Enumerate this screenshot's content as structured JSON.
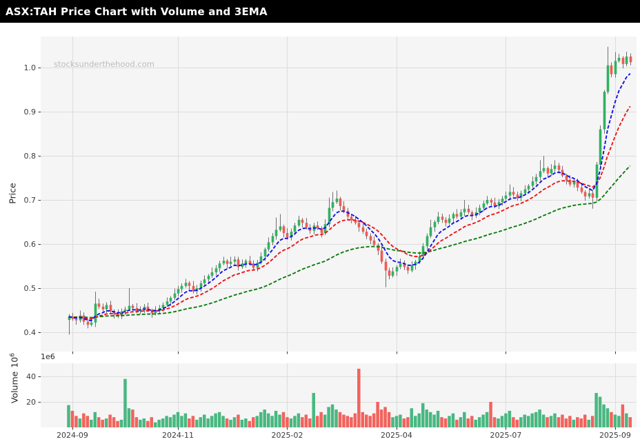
{
  "title_bar": {
    "title": "ASX:TAH Price Chart with Volume and 3EMA"
  },
  "watermark": "stocksunderthehood.com",
  "price_axis": {
    "label": "Price",
    "tick_values": [
      0.4,
      0.5,
      0.6,
      0.7,
      0.8,
      0.9,
      1.0
    ],
    "tick_labels": [
      "0.4",
      "0.5",
      "0.6",
      "0.7",
      "0.8",
      "0.9",
      "1.0"
    ]
  },
  "volume_axis": {
    "label": "Volume",
    "scale_base": "10",
    "scale_exp": "6",
    "offset_label": "1e6",
    "tick_values": [
      20,
      40
    ],
    "tick_labels": [
      "20",
      "40"
    ]
  },
  "x_axis": {
    "tick_labels": [
      "2024-09",
      "2024-11",
      "2025-02",
      "2025-04",
      "2025-07",
      "2025-09"
    ],
    "tick_bar_indices": [
      1,
      29,
      58,
      87,
      116,
      145
    ]
  },
  "colors": {
    "candle_up": "#2fb25f",
    "candle_down": "#f05a52",
    "volume_up": "#48b880",
    "volume_down": "#f2635c",
    "wick": "#6f6f6f",
    "ema_fast": "#0f0fe8",
    "ema_mid": "#ed1515",
    "ema_slow": "#0a7d0a",
    "grid": "#dcdcdc",
    "panel_bg": "#f5f5f6",
    "tick_mark": "#333333"
  },
  "chart_data": {
    "type": "candlestick",
    "title": "ASX:TAH Price Chart with Volume and 3EMA",
    "price_ylim": [
      0.356,
      1.067
    ],
    "volume_ylim_millions": [
      0,
      50.3
    ],
    "volume_unit": "1e6",
    "ema_periods": [
      7,
      16,
      55
    ],
    "ema_styles": [
      "dashed",
      "dashed",
      "dashed"
    ],
    "ohlcv_millions": [
      [
        0.428,
        0.441,
        0.395,
        0.435,
        17.5
      ],
      [
        0.435,
        0.444,
        0.426,
        0.43,
        13
      ],
      [
        0.43,
        0.434,
        0.417,
        0.427,
        9
      ],
      [
        0.427,
        0.449,
        0.422,
        0.438,
        7
      ],
      [
        0.438,
        0.445,
        0.417,
        0.424,
        11
      ],
      [
        0.424,
        0.43,
        0.409,
        0.417,
        9
      ],
      [
        0.417,
        0.431,
        0.413,
        0.422,
        6
      ],
      [
        0.422,
        0.492,
        0.412,
        0.465,
        12
      ],
      [
        0.465,
        0.476,
        0.453,
        0.458,
        8
      ],
      [
        0.458,
        0.465,
        0.445,
        0.452,
        6
      ],
      [
        0.452,
        0.468,
        0.444,
        0.462,
        7
      ],
      [
        0.462,
        0.471,
        0.444,
        0.448,
        10
      ],
      [
        0.448,
        0.452,
        0.431,
        0.441,
        8
      ],
      [
        0.441,
        0.452,
        0.432,
        0.437,
        5
      ],
      [
        0.437,
        0.454,
        0.43,
        0.447,
        6
      ],
      [
        0.447,
        0.458,
        0.439,
        0.452,
        38
      ],
      [
        0.452,
        0.5,
        0.448,
        0.46,
        15
      ],
      [
        0.46,
        0.464,
        0.445,
        0.455,
        14
      ],
      [
        0.455,
        0.466,
        0.443,
        0.448,
        8
      ],
      [
        0.448,
        0.459,
        0.441,
        0.452,
        6
      ],
      [
        0.452,
        0.464,
        0.444,
        0.458,
        7
      ],
      [
        0.458,
        0.467,
        0.446,
        0.45,
        5
      ],
      [
        0.45,
        0.454,
        0.433,
        0.443,
        8
      ],
      [
        0.443,
        0.459,
        0.438,
        0.448,
        4
      ],
      [
        0.448,
        0.462,
        0.441,
        0.455,
        6
      ],
      [
        0.455,
        0.468,
        0.447,
        0.462,
        7
      ],
      [
        0.462,
        0.479,
        0.458,
        0.47,
        9
      ],
      [
        0.47,
        0.482,
        0.46,
        0.478,
        8
      ],
      [
        0.478,
        0.499,
        0.473,
        0.488,
        10
      ],
      [
        0.488,
        0.505,
        0.481,
        0.498,
        12
      ],
      [
        0.498,
        0.511,
        0.49,
        0.505,
        9
      ],
      [
        0.505,
        0.521,
        0.501,
        0.512,
        11
      ],
      [
        0.512,
        0.516,
        0.495,
        0.505,
        7
      ],
      [
        0.505,
        0.516,
        0.488,
        0.493,
        9
      ],
      [
        0.493,
        0.507,
        0.486,
        0.5,
        6
      ],
      [
        0.5,
        0.517,
        0.492,
        0.511,
        8
      ],
      [
        0.511,
        0.529,
        0.507,
        0.52,
        10
      ],
      [
        0.52,
        0.532,
        0.51,
        0.528,
        7
      ],
      [
        0.528,
        0.547,
        0.523,
        0.536,
        9
      ],
      [
        0.536,
        0.552,
        0.529,
        0.545,
        11
      ],
      [
        0.545,
        0.562,
        0.537,
        0.556,
        12
      ],
      [
        0.556,
        0.571,
        0.552,
        0.562,
        9
      ],
      [
        0.562,
        0.566,
        0.545,
        0.555,
        7
      ],
      [
        0.555,
        0.571,
        0.55,
        0.56,
        6
      ],
      [
        0.56,
        0.572,
        0.553,
        0.565,
        8
      ],
      [
        0.565,
        0.571,
        0.54,
        0.548,
        10
      ],
      [
        0.548,
        0.565,
        0.544,
        0.556,
        6
      ],
      [
        0.556,
        0.566,
        0.546,
        0.562,
        7
      ],
      [
        0.562,
        0.573,
        0.551,
        0.556,
        5
      ],
      [
        0.556,
        0.563,
        0.539,
        0.546,
        8
      ],
      [
        0.546,
        0.564,
        0.538,
        0.558,
        9
      ],
      [
        0.558,
        0.581,
        0.554,
        0.572,
        12
      ],
      [
        0.572,
        0.592,
        0.562,
        0.588,
        14
      ],
      [
        0.588,
        0.615,
        0.583,
        0.604,
        11
      ],
      [
        0.604,
        0.625,
        0.597,
        0.618,
        9
      ],
      [
        0.618,
        0.66,
        0.61,
        0.632,
        13
      ],
      [
        0.632,
        0.668,
        0.628,
        0.64,
        10
      ],
      [
        0.64,
        0.644,
        0.615,
        0.625,
        12
      ],
      [
        0.625,
        0.636,
        0.61,
        0.615,
        8
      ],
      [
        0.615,
        0.635,
        0.608,
        0.628,
        7
      ],
      [
        0.628,
        0.648,
        0.62,
        0.642,
        9
      ],
      [
        0.642,
        0.664,
        0.638,
        0.655,
        11
      ],
      [
        0.655,
        0.659,
        0.638,
        0.648,
        8
      ],
      [
        0.648,
        0.659,
        0.633,
        0.638,
        10
      ],
      [
        0.638,
        0.645,
        0.623,
        0.63,
        7
      ],
      [
        0.63,
        0.648,
        0.622,
        0.642,
        27
      ],
      [
        0.642,
        0.651,
        0.632,
        0.636,
        9
      ],
      [
        0.636,
        0.64,
        0.615,
        0.625,
        12
      ],
      [
        0.625,
        0.656,
        0.62,
        0.645,
        10
      ],
      [
        0.645,
        0.705,
        0.638,
        0.682,
        16
      ],
      [
        0.682,
        0.718,
        0.674,
        0.695,
        18
      ],
      [
        0.695,
        0.721,
        0.691,
        0.703,
        14
      ],
      [
        0.703,
        0.707,
        0.676,
        0.686,
        12
      ],
      [
        0.686,
        0.697,
        0.67,
        0.675,
        10
      ],
      [
        0.675,
        0.682,
        0.655,
        0.662,
        9
      ],
      [
        0.662,
        0.668,
        0.647,
        0.655,
        8
      ],
      [
        0.655,
        0.664,
        0.644,
        0.648,
        11
      ],
      [
        0.648,
        0.652,
        0.628,
        0.638,
        46
      ],
      [
        0.638,
        0.649,
        0.623,
        0.628,
        12
      ],
      [
        0.628,
        0.635,
        0.611,
        0.618,
        10
      ],
      [
        0.618,
        0.624,
        0.6,
        0.608,
        9
      ],
      [
        0.608,
        0.617,
        0.594,
        0.598,
        11
      ],
      [
        0.598,
        0.602,
        0.575,
        0.585,
        20
      ],
      [
        0.585,
        0.596,
        0.555,
        0.56,
        14
      ],
      [
        0.56,
        0.567,
        0.502,
        0.54,
        16
      ],
      [
        0.54,
        0.546,
        0.52,
        0.528,
        12
      ],
      [
        0.528,
        0.547,
        0.524,
        0.538,
        8
      ],
      [
        0.538,
        0.552,
        0.528,
        0.548,
        9
      ],
      [
        0.548,
        0.567,
        0.543,
        0.556,
        10
      ],
      [
        0.556,
        0.563,
        0.541,
        0.548,
        7
      ],
      [
        0.548,
        0.554,
        0.532,
        0.54,
        8
      ],
      [
        0.54,
        0.561,
        0.536,
        0.552,
        15
      ],
      [
        0.552,
        0.564,
        0.542,
        0.56,
        9
      ],
      [
        0.56,
        0.583,
        0.555,
        0.572,
        11
      ],
      [
        0.572,
        0.602,
        0.565,
        0.595,
        19
      ],
      [
        0.595,
        0.624,
        0.587,
        0.618,
        14
      ],
      [
        0.618,
        0.655,
        0.614,
        0.638,
        12
      ],
      [
        0.638,
        0.654,
        0.628,
        0.65,
        10
      ],
      [
        0.65,
        0.673,
        0.645,
        0.662,
        13
      ],
      [
        0.662,
        0.669,
        0.648,
        0.655,
        8
      ],
      [
        0.655,
        0.661,
        0.64,
        0.648,
        7
      ],
      [
        0.648,
        0.667,
        0.644,
        0.658,
        9
      ],
      [
        0.658,
        0.672,
        0.648,
        0.668,
        11
      ],
      [
        0.668,
        0.679,
        0.657,
        0.662,
        6
      ],
      [
        0.662,
        0.679,
        0.655,
        0.672,
        8
      ],
      [
        0.672,
        0.7,
        0.664,
        0.68,
        12
      ],
      [
        0.68,
        0.689,
        0.668,
        0.672,
        7
      ],
      [
        0.672,
        0.676,
        0.654,
        0.664,
        9
      ],
      [
        0.664,
        0.683,
        0.659,
        0.672,
        6
      ],
      [
        0.672,
        0.689,
        0.665,
        0.682,
        8
      ],
      [
        0.682,
        0.698,
        0.674,
        0.692,
        10
      ],
      [
        0.692,
        0.709,
        0.688,
        0.7,
        12
      ],
      [
        0.7,
        0.704,
        0.684,
        0.694,
        20
      ],
      [
        0.694,
        0.705,
        0.681,
        0.686,
        8
      ],
      [
        0.686,
        0.702,
        0.679,
        0.695,
        7
      ],
      [
        0.695,
        0.709,
        0.687,
        0.703,
        9
      ],
      [
        0.703,
        0.719,
        0.699,
        0.71,
        11
      ],
      [
        0.71,
        0.735,
        0.7,
        0.718,
        13
      ],
      [
        0.718,
        0.729,
        0.707,
        0.712,
        8
      ],
      [
        0.712,
        0.719,
        0.698,
        0.705,
        6
      ],
      [
        0.705,
        0.721,
        0.697,
        0.715,
        8
      ],
      [
        0.715,
        0.733,
        0.711,
        0.724,
        10
      ],
      [
        0.724,
        0.736,
        0.714,
        0.732,
        9
      ],
      [
        0.732,
        0.753,
        0.727,
        0.742,
        11
      ],
      [
        0.742,
        0.759,
        0.735,
        0.752,
        12
      ],
      [
        0.752,
        0.79,
        0.744,
        0.765,
        14
      ],
      [
        0.765,
        0.8,
        0.761,
        0.772,
        10
      ],
      [
        0.772,
        0.776,
        0.75,
        0.76,
        8
      ],
      [
        0.76,
        0.781,
        0.755,
        0.77,
        9
      ],
      [
        0.77,
        0.79,
        0.763,
        0.778,
        11
      ],
      [
        0.778,
        0.784,
        0.76,
        0.768,
        8
      ],
      [
        0.768,
        0.777,
        0.751,
        0.755,
        10
      ],
      [
        0.755,
        0.759,
        0.735,
        0.745,
        7
      ],
      [
        0.745,
        0.756,
        0.73,
        0.735,
        9
      ],
      [
        0.735,
        0.749,
        0.728,
        0.742,
        6
      ],
      [
        0.742,
        0.748,
        0.72,
        0.728,
        8
      ],
      [
        0.728,
        0.737,
        0.714,
        0.718,
        7
      ],
      [
        0.718,
        0.722,
        0.698,
        0.708,
        10
      ],
      [
        0.708,
        0.726,
        0.703,
        0.715,
        6
      ],
      [
        0.715,
        0.722,
        0.68,
        0.705,
        9
      ],
      [
        0.705,
        0.786,
        0.697,
        0.78,
        27
      ],
      [
        0.78,
        0.869,
        0.776,
        0.86,
        24
      ],
      [
        0.86,
        0.949,
        0.85,
        0.945,
        18
      ],
      [
        0.945,
        1.047,
        0.94,
        1.005,
        15
      ],
      [
        1.005,
        1.012,
        0.978,
        0.985,
        12
      ],
      [
        0.985,
        1.035,
        0.977,
        1.015,
        10
      ],
      [
        1.015,
        1.031,
        1.011,
        1.022,
        9
      ],
      [
        1.022,
        1.026,
        0.998,
        1.008,
        18
      ],
      [
        1.008,
        1.036,
        1.003,
        1.025,
        11
      ],
      [
        1.025,
        1.032,
        1.005,
        1.012,
        8
      ]
    ]
  }
}
